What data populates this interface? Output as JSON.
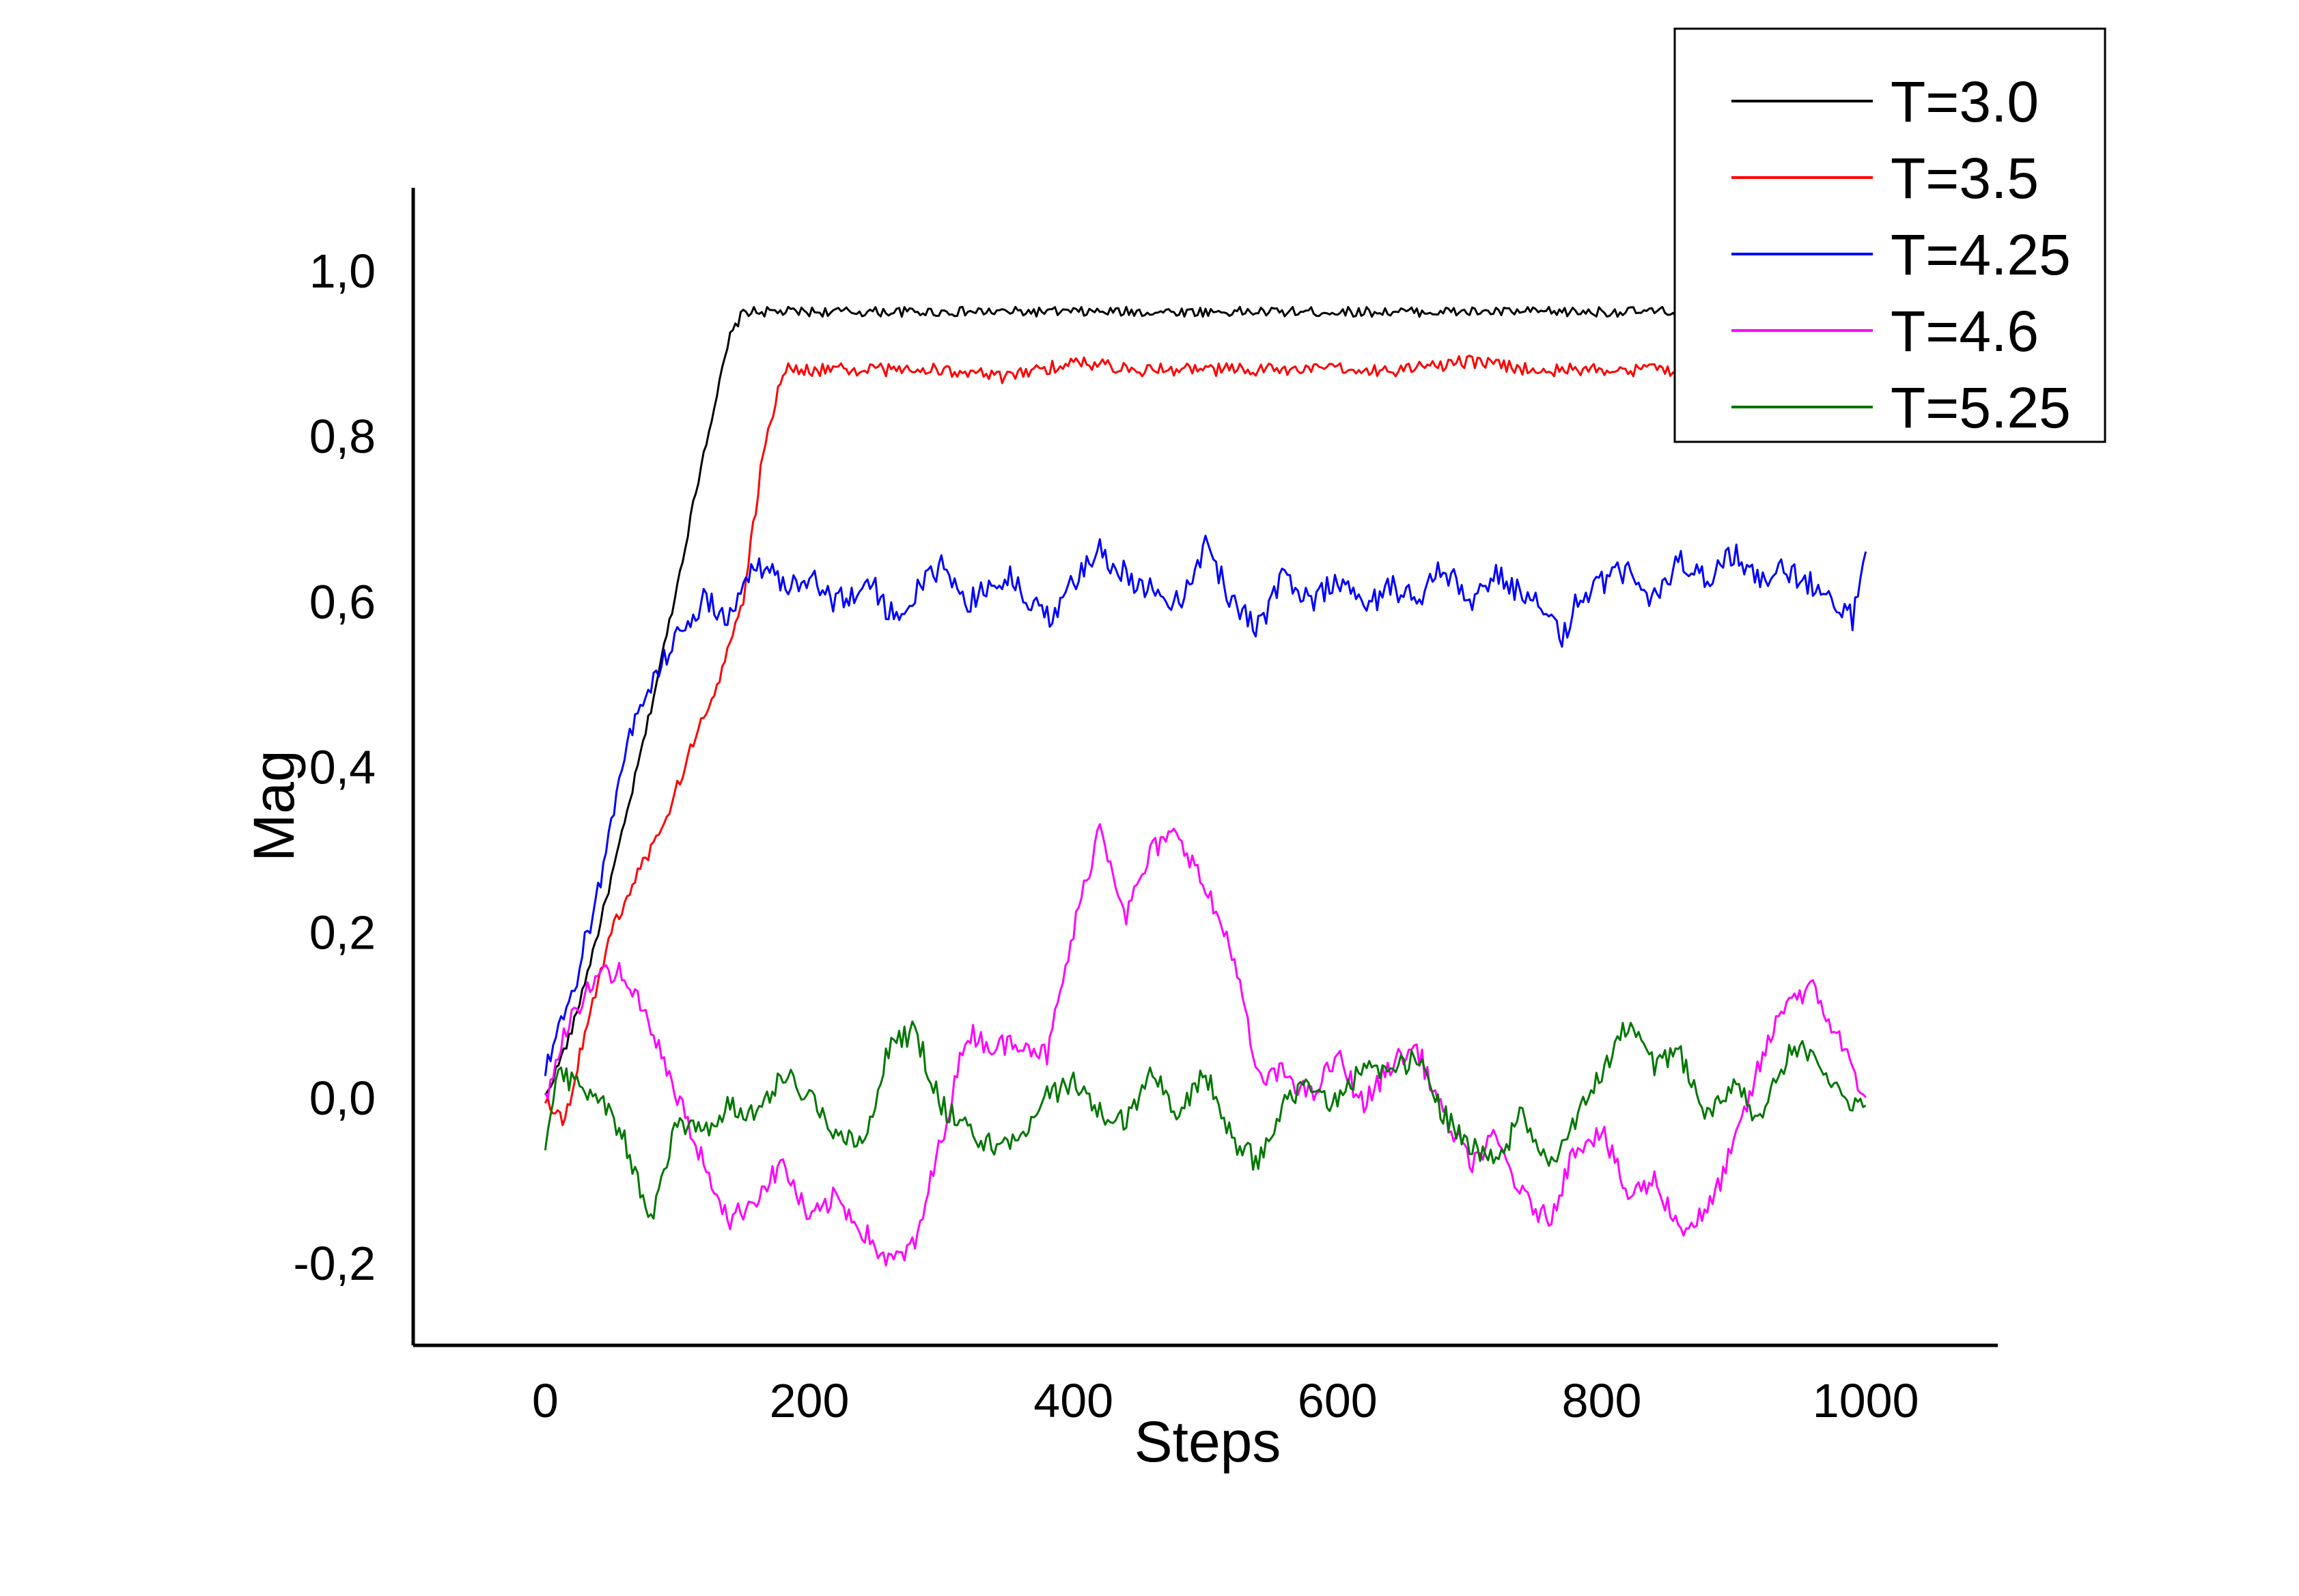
{
  "chart_data": {
    "type": "line",
    "title": "",
    "xlabel": "Steps",
    "ylabel": "Mag",
    "xlim": [
      -100,
      1100
    ],
    "ylim": [
      -0.3,
      1.1
    ],
    "x_ticks": [
      0,
      200,
      400,
      600,
      800,
      1000
    ],
    "x_tick_labels": [
      "0",
      "200",
      "400",
      "600",
      "800",
      "1000"
    ],
    "y_ticks": [
      -0.2,
      0.0,
      0.2,
      0.4,
      0.6,
      0.8,
      1.0
    ],
    "y_tick_labels": [
      "-0,2",
      "0,0",
      "0,2",
      "0,4",
      "0,6",
      "0,8",
      "1,0"
    ],
    "grid": false,
    "legend_position": "top-right",
    "series": [
      {
        "name": "T=3.0",
        "color": "#000000",
        "x": [
          0,
          20,
          40,
          60,
          80,
          100,
          120,
          140,
          150,
          170,
          200,
          250,
          300,
          350,
          400,
          450,
          500,
          550,
          600,
          650,
          700,
          750,
          800,
          850,
          900,
          950,
          1000
        ],
        "y": [
          0.0,
          0.08,
          0.2,
          0.33,
          0.47,
          0.62,
          0.78,
          0.92,
          0.95,
          0.95,
          0.95,
          0.95,
          0.95,
          0.95,
          0.95,
          0.95,
          0.95,
          0.95,
          0.95,
          0.95,
          0.95,
          0.95,
          0.95,
          0.95,
          0.95,
          0.95,
          0.95
        ]
      },
      {
        "name": "T=3.5",
        "color": "#ff0000",
        "x": [
          0,
          15,
          30,
          50,
          70,
          90,
          110,
          130,
          150,
          165,
          180,
          200,
          250,
          300,
          350,
          400,
          450,
          500,
          550,
          600,
          650,
          700,
          750,
          800,
          850,
          900,
          950,
          1000
        ],
        "y": [
          0.0,
          -0.03,
          0.08,
          0.2,
          0.27,
          0.33,
          0.42,
          0.5,
          0.6,
          0.78,
          0.88,
          0.88,
          0.88,
          0.88,
          0.87,
          0.89,
          0.88,
          0.88,
          0.88,
          0.88,
          0.88,
          0.89,
          0.88,
          0.88,
          0.88,
          0.88,
          0.88,
          0.88
        ]
      },
      {
        "name": "T=4.25",
        "color": "#0000ff",
        "x": [
          0,
          20,
          40,
          60,
          80,
          100,
          120,
          140,
          160,
          180,
          200,
          220,
          250,
          260,
          280,
          300,
          320,
          350,
          380,
          400,
          420,
          450,
          480,
          500,
          520,
          540,
          560,
          580,
          600,
          620,
          640,
          660,
          680,
          700,
          720,
          740,
          760,
          770,
          780,
          800,
          820,
          840,
          860,
          880,
          900,
          920,
          940,
          960,
          980,
          990,
          1000
        ],
        "y": [
          0.03,
          0.12,
          0.25,
          0.42,
          0.5,
          0.56,
          0.6,
          0.58,
          0.65,
          0.62,
          0.63,
          0.6,
          0.62,
          0.58,
          0.61,
          0.64,
          0.6,
          0.63,
          0.58,
          0.62,
          0.66,
          0.62,
          0.6,
          0.67,
          0.6,
          0.57,
          0.63,
          0.6,
          0.63,
          0.59,
          0.62,
          0.6,
          0.64,
          0.6,
          0.63,
          0.61,
          0.58,
          0.55,
          0.6,
          0.62,
          0.64,
          0.6,
          0.65,
          0.63,
          0.66,
          0.62,
          0.64,
          0.62,
          0.6,
          0.58,
          0.66
        ]
      },
      {
        "name": "T=4.6",
        "color": "#ff00ff",
        "x": [
          0,
          20,
          40,
          60,
          80,
          100,
          120,
          140,
          160,
          180,
          200,
          220,
          240,
          260,
          280,
          300,
          320,
          340,
          360,
          380,
          400,
          420,
          440,
          460,
          480,
          500,
          520,
          540,
          560,
          580,
          600,
          620,
          640,
          660,
          680,
          700,
          720,
          740,
          760,
          780,
          800,
          820,
          840,
          860,
          880,
          900,
          920,
          940,
          960,
          980,
          1000
        ],
        "y": [
          0.0,
          0.1,
          0.15,
          0.15,
          0.08,
          0.0,
          -0.08,
          -0.15,
          -0.12,
          -0.08,
          -0.15,
          -0.12,
          -0.16,
          -0.2,
          -0.18,
          -0.05,
          0.08,
          0.06,
          0.07,
          0.05,
          0.2,
          0.33,
          0.22,
          0.3,
          0.32,
          0.25,
          0.18,
          0.02,
          0.03,
          0.0,
          0.05,
          -0.01,
          0.04,
          0.06,
          -0.02,
          -0.08,
          -0.05,
          -0.12,
          -0.15,
          -0.06,
          -0.04,
          -0.12,
          -0.1,
          -0.16,
          -0.14,
          -0.06,
          0.04,
          0.12,
          0.13,
          0.07,
          0.0
        ]
      },
      {
        "name": "T=5.25",
        "color": "#007700",
        "x": [
          0,
          10,
          20,
          40,
          60,
          80,
          100,
          120,
          140,
          160,
          180,
          200,
          220,
          240,
          260,
          280,
          300,
          320,
          340,
          360,
          380,
          400,
          420,
          440,
          460,
          480,
          500,
          520,
          540,
          560,
          580,
          600,
          620,
          640,
          660,
          680,
          700,
          720,
          740,
          760,
          780,
          800,
          820,
          840,
          860,
          880,
          900,
          920,
          940,
          960,
          980,
          1000
        ],
        "y": [
          -0.05,
          0.03,
          0.02,
          0.0,
          -0.05,
          -0.15,
          -0.03,
          -0.04,
          -0.01,
          -0.02,
          0.03,
          0.0,
          -0.04,
          -0.06,
          0.06,
          0.08,
          -0.01,
          -0.04,
          -0.06,
          -0.05,
          0.0,
          0.02,
          -0.02,
          -0.03,
          0.03,
          -0.02,
          0.03,
          -0.05,
          -0.08,
          0.0,
          0.01,
          -0.01,
          0.04,
          0.03,
          0.05,
          -0.02,
          -0.06,
          -0.08,
          -0.02,
          -0.08,
          -0.03,
          0.03,
          0.09,
          0.04,
          0.05,
          -0.02,
          0.02,
          -0.03,
          0.05,
          0.06,
          0.0,
          -0.01
        ]
      }
    ]
  }
}
